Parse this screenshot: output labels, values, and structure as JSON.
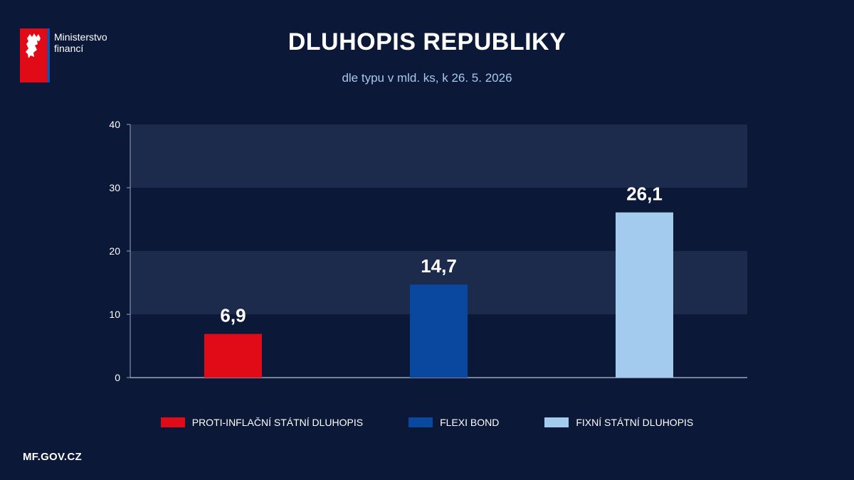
{
  "header": {
    "logo_line1": "Ministerstvo",
    "logo_line2": "financí",
    "title": "DLUHOPIS REPUBLIKY",
    "subtitle": "dle typu v mld. ks, k 26. 5. 2026"
  },
  "footer": {
    "url": "MF.GOV.CZ"
  },
  "chart_data": {
    "type": "bar",
    "categories": [
      "PROTI-INFLAČNÍ STÁTNÍ DLUHOPIS",
      "FLEXI BOND",
      "FIXNÍ STÁTNÍ DLUHOPIS"
    ],
    "values": [
      6.9,
      14.7,
      26.1
    ],
    "value_labels": [
      "6,9",
      "14,7",
      "26,1"
    ],
    "colors": [
      "#e10a17",
      "#0a479e",
      "#a3cbee"
    ],
    "ylim": [
      0,
      40
    ],
    "yticks": [
      0,
      10,
      20,
      30,
      40
    ],
    "grid": "alternating horizontal bands",
    "legend": "bottom",
    "xlabel": "",
    "ylabel": ""
  }
}
